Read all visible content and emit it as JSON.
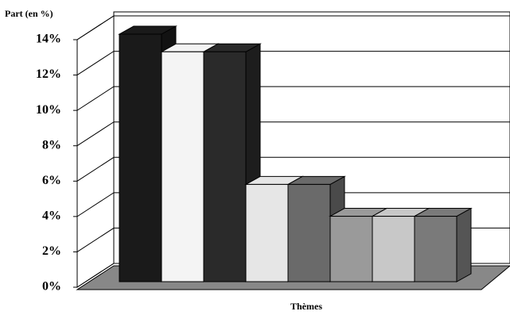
{
  "chart_data": {
    "type": "bar3d",
    "y_axis_label": "Part (en %)",
    "x_axis_label": "Thèmes",
    "categories": [
      null,
      null,
      null,
      null,
      null,
      null,
      null,
      null
    ],
    "values": [
      14,
      13,
      13,
      5.5,
      5.5,
      3.7,
      3.7,
      3.7
    ],
    "colors": [
      "#1a1a1a",
      "#f4f4f4",
      "#2a2a2a",
      "#e6e6e6",
      "#6a6a6a",
      "#9a9a9a",
      "#c8c8c8",
      "#7a7a7a"
    ],
    "ylim": [
      0,
      14
    ],
    "yticks": [
      {
        "value": 0,
        "label": "0%"
      },
      {
        "value": 2,
        "label": "2%"
      },
      {
        "value": 4,
        "label": "4%"
      },
      {
        "value": 6,
        "label": "6%"
      },
      {
        "value": 8,
        "label": "8%"
      },
      {
        "value": 10,
        "label": "10%"
      },
      {
        "value": 12,
        "label": "12%"
      },
      {
        "value": 14,
        "label": "14%"
      }
    ],
    "grid": true
  }
}
